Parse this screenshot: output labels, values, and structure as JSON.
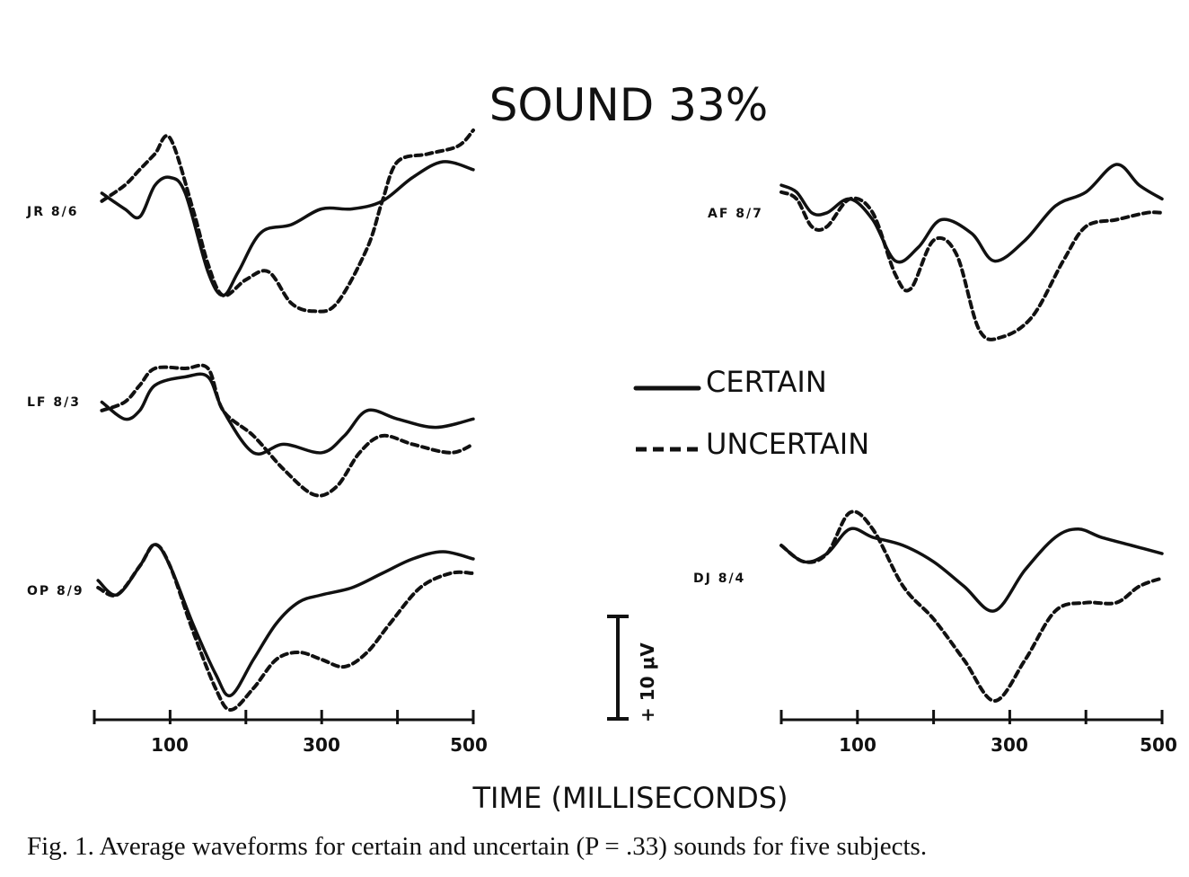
{
  "chart_data": {
    "type": "line",
    "title": "SOUND 33%",
    "xlabel": "TIME (MILLISECONDS)",
    "xlim": [
      0,
      500
    ],
    "x_ticks": [
      100,
      300,
      500
    ],
    "scale_bar": {
      "value": 10,
      "label": "+ 10 μV"
    },
    "legend": [
      {
        "name": "CERTAIN",
        "style": "solid"
      },
      {
        "name": "UNCERTAIN",
        "style": "dashed"
      }
    ],
    "panels": [
      {
        "id": "jr",
        "label": "JR 8/6",
        "column": "left",
        "yrange": [
          -12,
          12
        ],
        "certain": [
          [
            10,
            4
          ],
          [
            40,
            2
          ],
          [
            60,
            1
          ],
          [
            80,
            5
          ],
          [
            100,
            6
          ],
          [
            120,
            4
          ],
          [
            150,
            -6
          ],
          [
            170,
            -9
          ],
          [
            190,
            -6
          ],
          [
            220,
            -1
          ],
          [
            260,
            0
          ],
          [
            300,
            2
          ],
          [
            340,
            2
          ],
          [
            380,
            3
          ],
          [
            420,
            6
          ],
          [
            460,
            8
          ],
          [
            500,
            7
          ]
        ],
        "uncertain": [
          [
            10,
            3
          ],
          [
            40,
            5
          ],
          [
            60,
            7
          ],
          [
            80,
            9
          ],
          [
            100,
            11
          ],
          [
            130,
            2
          ],
          [
            150,
            -5
          ],
          [
            170,
            -9
          ],
          [
            200,
            -7
          ],
          [
            230,
            -6
          ],
          [
            260,
            -10
          ],
          [
            290,
            -11
          ],
          [
            320,
            -10
          ],
          [
            360,
            -3
          ],
          [
            380,
            3
          ],
          [
            400,
            8
          ],
          [
            440,
            9
          ],
          [
            480,
            10
          ],
          [
            500,
            12
          ]
        ]
      },
      {
        "id": "lf",
        "label": "LF 8/3",
        "column": "left",
        "yrange": [
          -8,
          8
        ],
        "certain": [
          [
            10,
            4
          ],
          [
            40,
            2
          ],
          [
            60,
            3
          ],
          [
            80,
            6
          ],
          [
            120,
            7
          ],
          [
            150,
            7
          ],
          [
            170,
            3
          ],
          [
            210,
            -2
          ],
          [
            250,
            -1
          ],
          [
            300,
            -2
          ],
          [
            330,
            0
          ],
          [
            360,
            3
          ],
          [
            400,
            2
          ],
          [
            450,
            1
          ],
          [
            500,
            2
          ]
        ],
        "uncertain": [
          [
            10,
            3
          ],
          [
            40,
            4
          ],
          [
            60,
            6
          ],
          [
            80,
            8
          ],
          [
            120,
            8
          ],
          [
            150,
            8
          ],
          [
            170,
            3
          ],
          [
            210,
            0
          ],
          [
            250,
            -4
          ],
          [
            290,
            -7
          ],
          [
            320,
            -6
          ],
          [
            350,
            -2
          ],
          [
            380,
            0
          ],
          [
            420,
            -1
          ],
          [
            470,
            -2
          ],
          [
            500,
            -1
          ]
        ]
      },
      {
        "id": "op",
        "label": "OP 8/9",
        "column": "left",
        "yrange": [
          -12,
          12
        ],
        "certain": [
          [
            5,
            6
          ],
          [
            30,
            4
          ],
          [
            60,
            8
          ],
          [
            80,
            11
          ],
          [
            100,
            8
          ],
          [
            130,
            0
          ],
          [
            160,
            -7
          ],
          [
            180,
            -10
          ],
          [
            210,
            -5
          ],
          [
            240,
            0
          ],
          [
            270,
            3
          ],
          [
            300,
            4
          ],
          [
            340,
            5
          ],
          [
            380,
            7
          ],
          [
            420,
            9
          ],
          [
            460,
            10
          ],
          [
            500,
            9
          ]
        ],
        "uncertain": [
          [
            5,
            5
          ],
          [
            30,
            4
          ],
          [
            60,
            8
          ],
          [
            80,
            11
          ],
          [
            100,
            8
          ],
          [
            130,
            -1
          ],
          [
            160,
            -9
          ],
          [
            180,
            -12
          ],
          [
            210,
            -9
          ],
          [
            240,
            -5
          ],
          [
            270,
            -4
          ],
          [
            300,
            -5
          ],
          [
            330,
            -6
          ],
          [
            360,
            -4
          ],
          [
            390,
            0
          ],
          [
            430,
            5
          ],
          [
            470,
            7
          ],
          [
            500,
            7
          ]
        ]
      },
      {
        "id": "af",
        "label": "AF 8/7",
        "column": "right",
        "yrange": [
          -14,
          14
        ],
        "certain": [
          [
            0,
            8
          ],
          [
            20,
            7
          ],
          [
            40,
            4
          ],
          [
            60,
            4
          ],
          [
            90,
            6
          ],
          [
            120,
            3
          ],
          [
            150,
            -3
          ],
          [
            180,
            -1
          ],
          [
            210,
            3
          ],
          [
            250,
            1
          ],
          [
            280,
            -3
          ],
          [
            320,
            0
          ],
          [
            360,
            5
          ],
          [
            400,
            7
          ],
          [
            440,
            11
          ],
          [
            470,
            8
          ],
          [
            500,
            6
          ]
        ],
        "uncertain": [
          [
            0,
            7
          ],
          [
            20,
            6
          ],
          [
            40,
            2
          ],
          [
            60,
            2
          ],
          [
            90,
            6
          ],
          [
            120,
            4
          ],
          [
            150,
            -5
          ],
          [
            170,
            -7
          ],
          [
            200,
            0
          ],
          [
            230,
            -2
          ],
          [
            260,
            -13
          ],
          [
            290,
            -14
          ],
          [
            330,
            -11
          ],
          [
            370,
            -3
          ],
          [
            400,
            2
          ],
          [
            440,
            3
          ],
          [
            480,
            4
          ],
          [
            500,
            4
          ]
        ]
      },
      {
        "id": "dj",
        "label": "DJ 8/4",
        "column": "right",
        "yrange": [
          -14,
          14
        ],
        "certain": [
          [
            0,
            5
          ],
          [
            30,
            3
          ],
          [
            60,
            4
          ],
          [
            90,
            7
          ],
          [
            120,
            6
          ],
          [
            160,
            5
          ],
          [
            200,
            3
          ],
          [
            240,
            0
          ],
          [
            280,
            -3
          ],
          [
            320,
            2
          ],
          [
            360,
            6
          ],
          [
            390,
            7
          ],
          [
            420,
            6
          ],
          [
            460,
            5
          ],
          [
            500,
            4
          ]
        ],
        "uncertain": [
          [
            0,
            5
          ],
          [
            30,
            3
          ],
          [
            60,
            4
          ],
          [
            90,
            9
          ],
          [
            120,
            7
          ],
          [
            160,
            0
          ],
          [
            200,
            -4
          ],
          [
            240,
            -9
          ],
          [
            280,
            -14
          ],
          [
            320,
            -9
          ],
          [
            360,
            -3
          ],
          [
            400,
            -2
          ],
          [
            440,
            -2
          ],
          [
            470,
            0
          ],
          [
            500,
            1
          ]
        ]
      }
    ]
  },
  "caption": "Fig. 1. Average waveforms for certain and uncertain (P = .33) sounds for five subjects."
}
